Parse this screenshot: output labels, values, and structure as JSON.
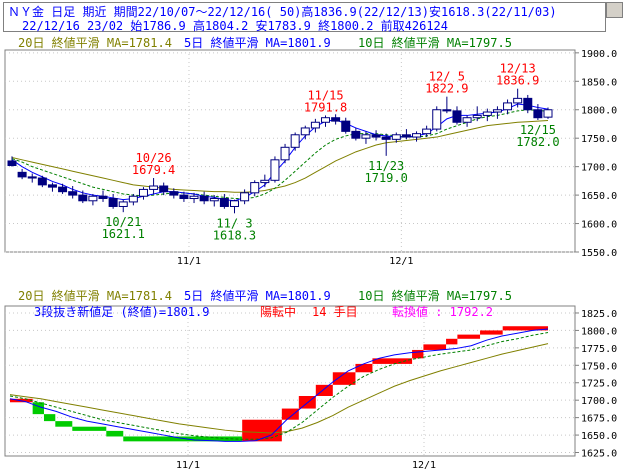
{
  "header": {
    "line1": "ＮＹ金 日足 期近 期間22/10/07～22/12/16( 50)高1836.9(22/12/13)安1618.3(22/11/03)",
    "line2": "22/12/16 23/02 始1786.9 高1804.2 安1783.9 終1800.2 前取426124"
  },
  "colors": {
    "ma20": "#808000",
    "ma5": "#0000ff",
    "ma10": "#008000",
    "up_candle": "#ffffff",
    "down_candle": "#000080",
    "high_label": "#ff0000",
    "low_label": "#008000",
    "brick_up": "#ff0000",
    "brick_down": "#00cc00"
  },
  "chart_data": [
    {
      "type": "candlestick",
      "legend": [
        "20日 終値平滑 MA=1781.4",
        "5日 終値平滑 MA=1801.9",
        "10日 終値平滑 MA=1797.5"
      ],
      "x_ticks": [
        "11/1",
        "12/1"
      ],
      "y_ticks": [
        "1900.0",
        "1850.0",
        "1800.0",
        "1750.0",
        "1700.0",
        "1650.0",
        "1600.0",
        "1550.0"
      ],
      "ylim": [
        1550,
        1905
      ],
      "ohlc": [
        [
          1710,
          1718,
          1700,
          1702
        ],
        [
          1690,
          1696,
          1678,
          1682
        ],
        [
          1682,
          1688,
          1672,
          1680
        ],
        [
          1680,
          1684,
          1664,
          1668
        ],
        [
          1668,
          1672,
          1656,
          1664
        ],
        [
          1664,
          1670,
          1652,
          1656
        ],
        [
          1656,
          1666,
          1644,
          1650
        ],
        [
          1650,
          1658,
          1636,
          1640
        ],
        [
          1640,
          1652,
          1632,
          1648
        ],
        [
          1648,
          1658,
          1638,
          1644
        ],
        [
          1644,
          1652,
          1626,
          1630
        ],
        [
          1630,
          1642,
          1620,
          1638
        ],
        [
          1638,
          1652,
          1632,
          1648
        ],
        [
          1648,
          1664,
          1642,
          1660
        ],
        [
          1660,
          1680,
          1652,
          1666
        ],
        [
          1666,
          1672,
          1650,
          1656
        ],
        [
          1656,
          1662,
          1644,
          1650
        ],
        [
          1650,
          1656,
          1638,
          1644
        ],
        [
          1644,
          1654,
          1636,
          1648
        ],
        [
          1648,
          1656,
          1634,
          1640
        ],
        [
          1640,
          1650,
          1630,
          1644
        ],
        [
          1644,
          1652,
          1626,
          1630
        ],
        [
          1630,
          1642,
          1618,
          1640
        ],
        [
          1640,
          1660,
          1634,
          1654
        ],
        [
          1654,
          1676,
          1648,
          1672
        ],
        [
          1672,
          1686,
          1664,
          1676
        ],
        [
          1676,
          1718,
          1672,
          1712
        ],
        [
          1712,
          1740,
          1706,
          1734
        ],
        [
          1734,
          1760,
          1728,
          1756
        ],
        [
          1756,
          1772,
          1748,
          1768
        ],
        [
          1768,
          1784,
          1760,
          1778
        ],
        [
          1778,
          1790,
          1770,
          1786
        ],
        [
          1786,
          1792,
          1774,
          1780
        ],
        [
          1780,
          1786,
          1758,
          1762
        ],
        [
          1762,
          1768,
          1746,
          1750
        ],
        [
          1750,
          1762,
          1740,
          1756
        ],
        [
          1756,
          1764,
          1746,
          1752
        ],
        [
          1752,
          1758,
          1719,
          1748
        ],
        [
          1748,
          1760,
          1742,
          1756
        ],
        [
          1756,
          1766,
          1748,
          1752
        ],
        [
          1752,
          1762,
          1744,
          1758
        ],
        [
          1758,
          1772,
          1752,
          1766
        ],
        [
          1766,
          1806,
          1762,
          1800
        ],
        [
          1800,
          1823,
          1794,
          1798
        ],
        [
          1798,
          1806,
          1774,
          1778
        ],
        [
          1778,
          1790,
          1770,
          1786
        ],
        [
          1786,
          1806,
          1780,
          1790
        ],
        [
          1790,
          1802,
          1780,
          1796
        ],
        [
          1796,
          1806,
          1784,
          1800
        ],
        [
          1800,
          1818,
          1792,
          1812
        ],
        [
          1812,
          1837,
          1804,
          1820
        ],
        [
          1820,
          1826,
          1794,
          1800
        ],
        [
          1800,
          1810,
          1782,
          1786
        ],
        [
          1787,
          1804,
          1784,
          1800
        ]
      ],
      "ma5": [
        1712,
        1700,
        1690,
        1682,
        1674,
        1668,
        1660,
        1654,
        1650,
        1648,
        1645,
        1642,
        1644,
        1648,
        1652,
        1656,
        1656,
        1654,
        1652,
        1648,
        1646,
        1642,
        1640,
        1646,
        1656,
        1668,
        1690,
        1710,
        1734,
        1754,
        1770,
        1780,
        1782,
        1776,
        1768,
        1762,
        1756,
        1754,
        1752,
        1752,
        1754,
        1758,
        1770,
        1784,
        1790,
        1790,
        1792,
        1794,
        1796,
        1802,
        1810,
        1808,
        1804,
        1801
      ],
      "ma10": [
        1714,
        1708,
        1700,
        1694,
        1688,
        1682,
        1676,
        1670,
        1664,
        1660,
        1656,
        1652,
        1650,
        1648,
        1650,
        1652,
        1654,
        1654,
        1652,
        1650,
        1648,
        1646,
        1644,
        1644,
        1646,
        1652,
        1662,
        1676,
        1692,
        1708,
        1724,
        1738,
        1748,
        1754,
        1758,
        1758,
        1758,
        1756,
        1754,
        1752,
        1752,
        1754,
        1758,
        1766,
        1772,
        1778,
        1784,
        1788,
        1790,
        1794,
        1798,
        1800,
        1799,
        1797
      ],
      "ma20": [
        1716,
        1712,
        1708,
        1704,
        1700,
        1696,
        1692,
        1688,
        1684,
        1680,
        1676,
        1672,
        1668,
        1666,
        1664,
        1662,
        1660,
        1659,
        1658,
        1657,
        1656,
        1656,
        1655,
        1655,
        1656,
        1658,
        1662,
        1666,
        1672,
        1680,
        1690,
        1700,
        1710,
        1718,
        1726,
        1732,
        1738,
        1742,
        1744,
        1746,
        1748,
        1750,
        1752,
        1756,
        1760,
        1764,
        1768,
        1772,
        1774,
        1776,
        1778,
        1779,
        1780,
        1781
      ],
      "annotations": [
        {
          "date": "10/26",
          "value": "1679.4",
          "kind": "high",
          "i": 14
        },
        {
          "date": "10/21",
          "value": "1621.1",
          "kind": "low",
          "i": 11
        },
        {
          "date": "11/ 3",
          "value": "1618.3",
          "kind": "low",
          "i": 22
        },
        {
          "date": "11/15",
          "value": "1791.8",
          "kind": "high",
          "i": 31
        },
        {
          "date": "11/23",
          "value": "1719.0",
          "kind": "low",
          "i": 37
        },
        {
          "date": "12/ 5",
          "value": "1822.9",
          "kind": "high",
          "i": 43
        },
        {
          "date": "12/13",
          "value": "1836.9",
          "kind": "high",
          "i": 50
        },
        {
          "date": "12/15",
          "value": "1782.0",
          "kind": "low",
          "i": 52
        }
      ]
    },
    {
      "type": "three-line-break",
      "legend": [
        "20日 終値平滑 MA=1781.4",
        "5日 終値平滑 MA=1801.9",
        "10日 終値平滑 MA=1797.5"
      ],
      "info": {
        "part1": "3段抜き新値足 (終値)=1801.9",
        "part2": "陽転中",
        "part3": "14 手目",
        "part4": "転換値 : 1792.2"
      },
      "x_ticks": [
        "11/1",
        "12/1"
      ],
      "y_ticks": [
        "1825.0",
        "1800.0",
        "1775.0",
        "1750.0",
        "1725.0",
        "1700.0",
        "1675.0",
        "1650.0",
        "1625.0"
      ],
      "ylim": [
        1620,
        1835
      ],
      "bricks": [
        {
          "from": 1702,
          "to": 1697,
          "dir": "up",
          "start": 0
        },
        {
          "from": 1697,
          "to": 1680,
          "dir": "down",
          "start": 8
        },
        {
          "from": 1680,
          "to": 1670,
          "dir": "down",
          "start": 12
        },
        {
          "from": 1670,
          "to": 1662,
          "dir": "down",
          "start": 16
        },
        {
          "from": 1662,
          "to": 1656,
          "dir": "down",
          "start": 22
        },
        {
          "from": 1656,
          "to": 1648,
          "dir": "down",
          "start": 34
        },
        {
          "from": 1648,
          "to": 1641,
          "dir": "down",
          "start": 40
        },
        {
          "from": 1641,
          "to": 1672,
          "dir": "up",
          "start": 82
        },
        {
          "from": 1672,
          "to": 1688,
          "dir": "up",
          "start": 96
        },
        {
          "from": 1688,
          "to": 1706,
          "dir": "up",
          "start": 102
        },
        {
          "from": 1706,
          "to": 1722,
          "dir": "up",
          "start": 108
        },
        {
          "from": 1722,
          "to": 1740,
          "dir": "up",
          "start": 114
        },
        {
          "from": 1740,
          "to": 1752,
          "dir": "up",
          "start": 122
        },
        {
          "from": 1752,
          "to": 1760,
          "dir": "up",
          "start": 128
        },
        {
          "from": 1760,
          "to": 1772,
          "dir": "up",
          "start": 142
        },
        {
          "from": 1772,
          "to": 1780,
          "dir": "up",
          "start": 146
        },
        {
          "from": 1780,
          "to": 1788,
          "dir": "up",
          "start": 154
        },
        {
          "from": 1788,
          "to": 1794,
          "dir": "up",
          "start": 158
        },
        {
          "from": 1794,
          "to": 1800,
          "dir": "up",
          "start": 166
        },
        {
          "from": 1800,
          "to": 1806,
          "dir": "up",
          "start": 174
        }
      ],
      "brick_count": 190,
      "ma5": [
        1702,
        1698,
        1690,
        1684,
        1676,
        1670,
        1666,
        1662,
        1658,
        1654,
        1650,
        1646,
        1643,
        1642,
        1641,
        1641,
        1642,
        1650,
        1672,
        1690,
        1708,
        1726,
        1742,
        1752,
        1760,
        1765,
        1768,
        1770,
        1772,
        1774,
        1778,
        1786,
        1792,
        1796,
        1800,
        1802
      ],
      "ma10": [
        1706,
        1702,
        1696,
        1690,
        1684,
        1678,
        1672,
        1668,
        1664,
        1660,
        1656,
        1652,
        1649,
        1647,
        1645,
        1644,
        1644,
        1646,
        1654,
        1668,
        1686,
        1704,
        1720,
        1734,
        1744,
        1752,
        1758,
        1762,
        1766,
        1769,
        1772,
        1778,
        1784,
        1788,
        1793,
        1797
      ],
      "ma20": [
        1708,
        1705,
        1702,
        1698,
        1694,
        1690,
        1686,
        1682,
        1678,
        1674,
        1670,
        1666,
        1663,
        1660,
        1657,
        1655,
        1654,
        1653,
        1655,
        1660,
        1668,
        1678,
        1690,
        1700,
        1710,
        1720,
        1728,
        1735,
        1742,
        1748,
        1754,
        1760,
        1766,
        1771,
        1776,
        1781
      ]
    }
  ]
}
